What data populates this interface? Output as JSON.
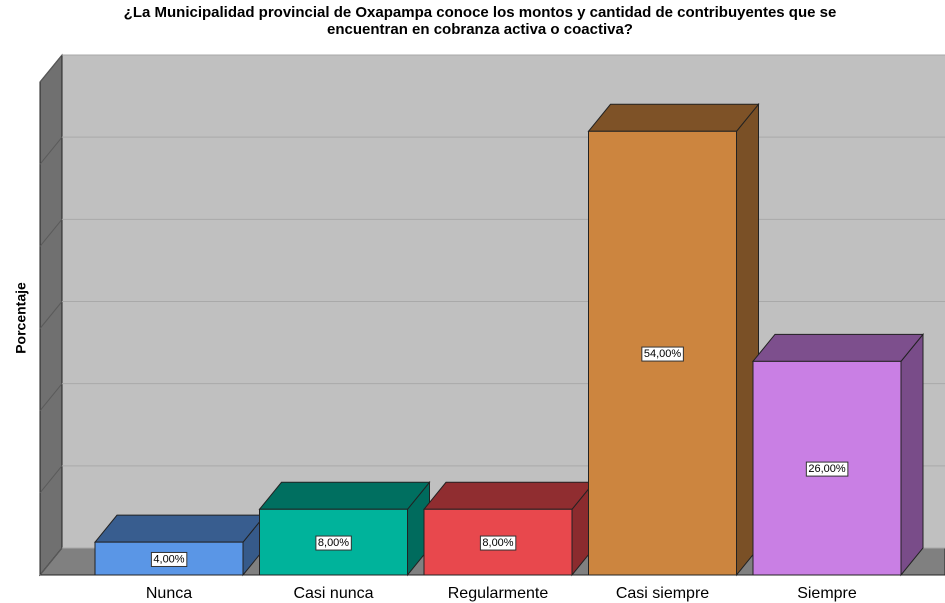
{
  "chart_data": {
    "type": "bar3d",
    "title": [
      "¿La Municipalidad provincial de Oxapampa conoce los montos y cantidad de contribuyentes que se",
      "encuentran en cobranza activa o coactiva?"
    ],
    "y_label": "Porcentaje",
    "categories": [
      "Nunca",
      "Casi nunca",
      "Regularmente",
      "Casi siempre",
      "Siempre"
    ],
    "values": [
      4,
      8,
      8,
      54,
      26
    ],
    "value_labels": [
      "4,00%",
      "8,00%",
      "8,00%",
      "54,00%",
      "26,00%"
    ],
    "colors": [
      "#5a96e6",
      "#00b39b",
      "#e8484d",
      "#cc853f",
      "#c97fe4"
    ],
    "ylim": [
      0,
      60
    ],
    "yticks": [
      0,
      10,
      20,
      30,
      40,
      50,
      60
    ],
    "grid": true
  }
}
